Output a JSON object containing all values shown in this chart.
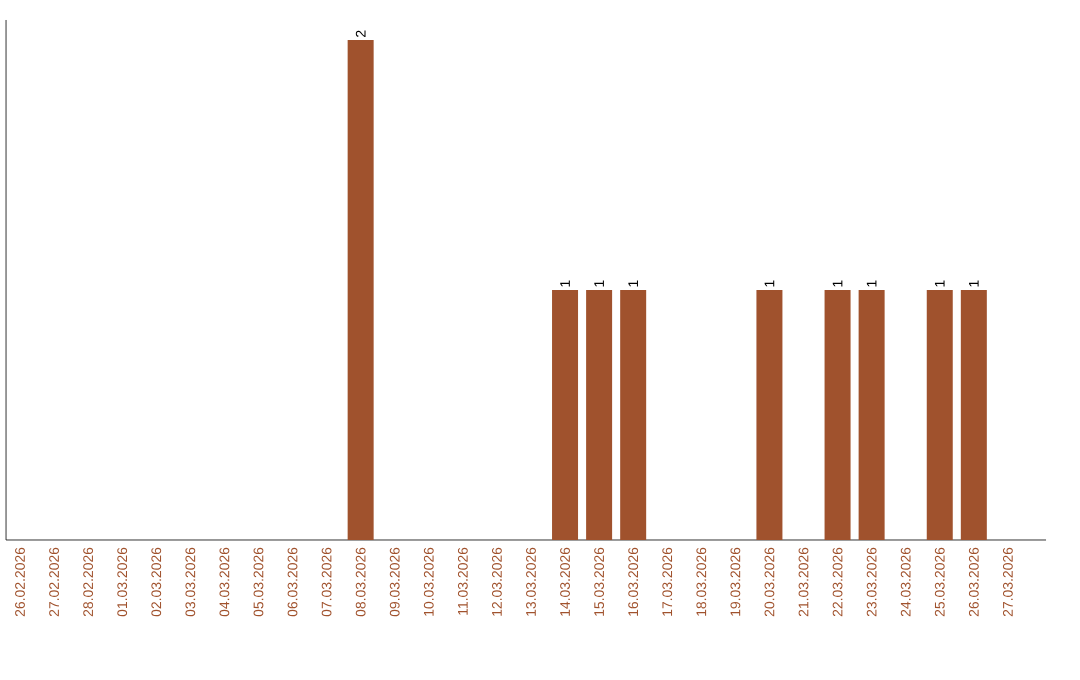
{
  "chart_data": {
    "type": "bar",
    "categories": [
      "26.02.2026",
      "27.02.2026",
      "28.02.2026",
      "01.03.2026",
      "02.03.2026",
      "03.03.2026",
      "04.03.2026",
      "05.03.2026",
      "06.03.2026",
      "07.03.2026",
      "08.03.2026",
      "09.03.2026",
      "10.03.2026",
      "11.03.2026",
      "12.03.2026",
      "13.03.2026",
      "14.03.2026",
      "15.03.2026",
      "16.03.2026",
      "17.03.2026",
      "18.03.2026",
      "19.03.2026",
      "20.03.2026",
      "21.03.2026",
      "22.03.2026",
      "23.03.2026",
      "24.03.2026",
      "25.03.2026",
      "26.03.2026",
      "27.03.2026"
    ],
    "values": [
      0,
      0,
      0,
      0,
      0,
      0,
      0,
      0,
      0,
      0,
      2,
      0,
      0,
      0,
      0,
      0,
      1,
      1,
      1,
      0,
      0,
      0,
      1,
      0,
      1,
      1,
      0,
      1,
      1,
      0
    ],
    "value_labels": [
      null,
      null,
      null,
      null,
      null,
      null,
      null,
      null,
      null,
      null,
      "2",
      null,
      null,
      null,
      null,
      null,
      "1",
      "1",
      "1",
      null,
      null,
      null,
      "1",
      null,
      "1",
      "1",
      null,
      "1",
      "1",
      null
    ],
    "color": "#a0522d",
    "tick_labels": "x"
  }
}
